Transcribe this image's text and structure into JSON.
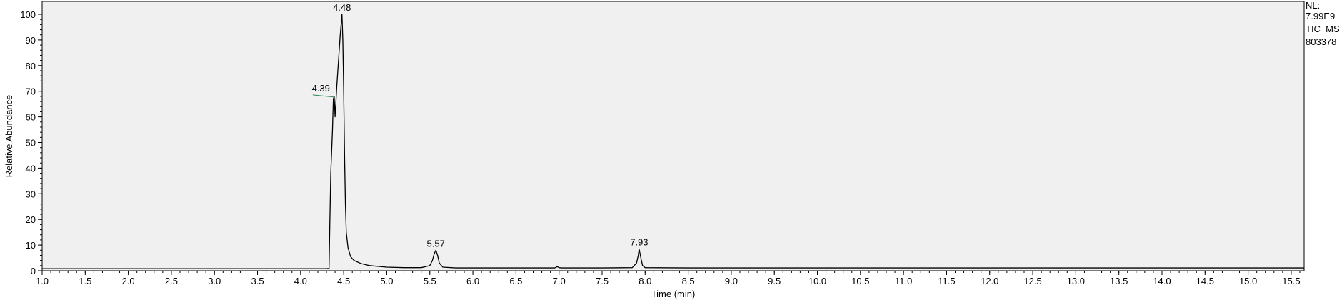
{
  "chart_data": {
    "type": "line",
    "xlabel": "Time (min)",
    "ylabel": "Relative Abundance",
    "xlim": [
      1.0,
      15.65
    ],
    "ylim": [
      0,
      100
    ],
    "x_ticks": [
      "1.0",
      "1.5",
      "2.0",
      "2.5",
      "3.0",
      "3.5",
      "4.0",
      "4.5",
      "5.0",
      "5.5",
      "6.0",
      "6.5",
      "7.0",
      "7.5",
      "8.0",
      "8.5",
      "9.0",
      "9.5",
      "10.0",
      "10.5",
      "11.0",
      "11.5",
      "12.0",
      "12.5",
      "13.0",
      "13.5",
      "14.0",
      "14.5",
      "15.0",
      "15.5"
    ],
    "y_ticks": [
      "0",
      "10",
      "20",
      "30",
      "40",
      "50",
      "60",
      "70",
      "80",
      "90",
      "100"
    ],
    "grid": false,
    "series": [
      {
        "x": [
          1.0,
          2.0,
          3.0,
          4.0,
          4.3,
          4.33,
          4.34,
          4.35,
          4.37,
          4.38,
          4.39,
          4.4,
          4.41,
          4.42,
          4.44,
          4.46,
          4.48,
          4.49,
          4.5,
          4.51,
          4.52,
          4.53,
          4.55,
          4.58,
          4.62,
          4.7,
          4.8,
          5.0,
          5.2,
          5.4,
          5.5,
          5.53,
          5.55,
          5.57,
          5.59,
          5.61,
          5.65,
          5.8,
          6.5,
          6.95,
          6.98,
          7.0,
          7.03,
          7.08,
          7.5,
          7.85,
          7.9,
          7.92,
          7.93,
          7.95,
          7.97,
          8.0,
          8.5,
          10.0,
          12.0,
          14.0,
          15.65
        ],
        "y": [
          0.8,
          0.8,
          0.8,
          0.8,
          0.8,
          0.9,
          20,
          38,
          55,
          67,
          68,
          60,
          66,
          72,
          82,
          92,
          100,
          90,
          70,
          45,
          26,
          15,
          9,
          5.5,
          4,
          2.8,
          2,
          1.4,
          1.2,
          1.2,
          2,
          4,
          6.5,
          8,
          6,
          3,
          1.4,
          1.1,
          1.1,
          1.1,
          1.6,
          1.2,
          1.1,
          1.1,
          1.1,
          1.2,
          3,
          6,
          8.5,
          5,
          2,
          1.2,
          1.1,
          1.1,
          1.1,
          1.1,
          1.1
        ]
      }
    ],
    "peak_labels": [
      {
        "text": "4.39",
        "x": 4.39,
        "y": 68
      },
      {
        "text": "4.48",
        "x": 4.48,
        "y": 100
      },
      {
        "text": "5.57",
        "x": 5.57,
        "y": 8
      },
      {
        "text": "7.93",
        "x": 7.93,
        "y": 8.5
      }
    ],
    "info": [
      "NL:",
      "7.99E9",
      "TIC  MS",
      "803378"
    ]
  }
}
